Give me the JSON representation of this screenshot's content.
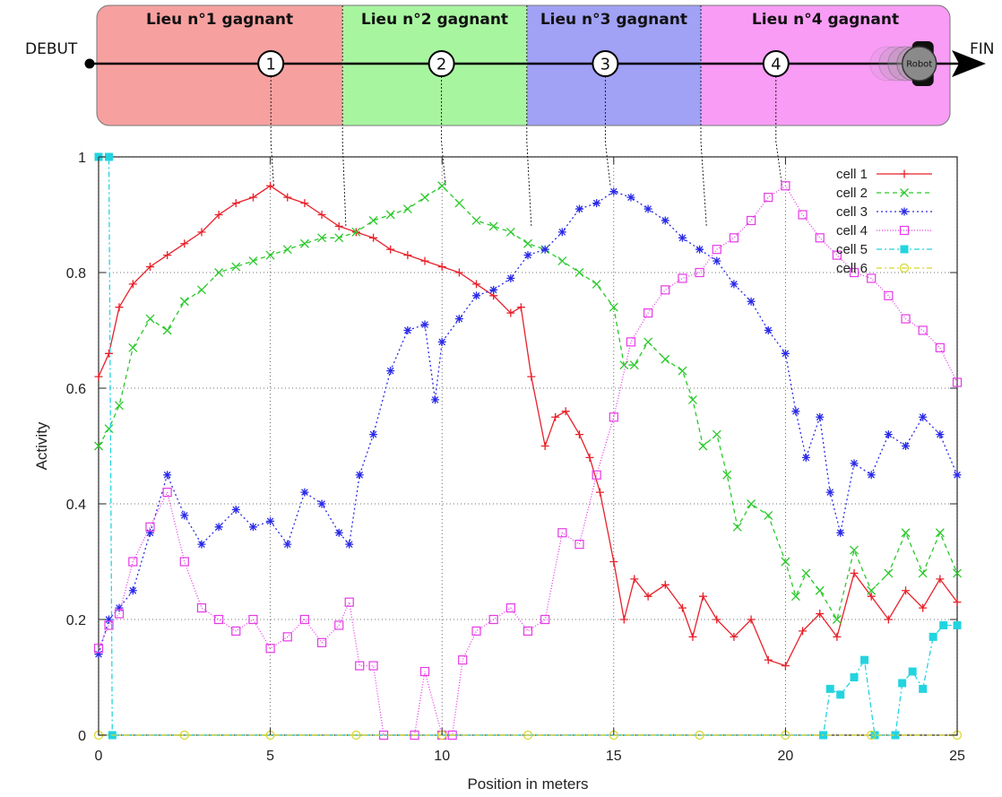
{
  "banner": {
    "start_label": "DEBUT",
    "end_label": "FIN",
    "robot_label": "Robot",
    "zones": [
      {
        "label": "Lieu n°1 gagnant",
        "from": 0,
        "to": 7.2,
        "color": "#f7a0a0"
      },
      {
        "label": "Lieu n°2 gagnant",
        "from": 7.2,
        "to": 12.6,
        "color": "#a8f5a0"
      },
      {
        "label": "Lieu n°3 gagnant",
        "from": 12.6,
        "to": 17.7,
        "color": "#a1a1f5"
      },
      {
        "label": "Lieu n°4 gagnant",
        "from": 17.7,
        "to": 25,
        "color": "#f89cf5"
      }
    ],
    "places": [
      {
        "label": "1",
        "x": 5.1
      },
      {
        "label": "2",
        "x": 10.1
      },
      {
        "label": "3",
        "x": 14.9
      },
      {
        "label": "4",
        "x": 19.9
      }
    ],
    "robot_position": 24.1
  },
  "chart_data": {
    "type": "line",
    "xlabel": "Position in meters",
    "ylabel": "Activity",
    "xlim": [
      0,
      25
    ],
    "ylim": [
      0,
      1
    ],
    "xticks": [
      0,
      5,
      10,
      15,
      20,
      25
    ],
    "yticks": [
      0,
      0.2,
      0.4,
      0.6,
      0.8,
      1
    ],
    "ytick_labels": [
      "0",
      "0.2",
      "0.4",
      "0.6",
      "0.8",
      "1"
    ],
    "grid": true,
    "legend_position": "top-right",
    "boundaries": [
      7.2,
      12.6,
      17.7
    ],
    "series": [
      {
        "name": "cell 1",
        "color": "#e8202a",
        "marker": "plus",
        "dash": "",
        "points": [
          [
            0,
            0.62
          ],
          [
            0.3,
            0.66
          ],
          [
            0.6,
            0.74
          ],
          [
            1,
            0.78
          ],
          [
            1.5,
            0.81
          ],
          [
            2,
            0.83
          ],
          [
            2.5,
            0.85
          ],
          [
            3,
            0.87
          ],
          [
            3.5,
            0.9
          ],
          [
            4,
            0.92
          ],
          [
            4.5,
            0.93
          ],
          [
            5,
            0.95
          ],
          [
            5.5,
            0.93
          ],
          [
            6,
            0.92
          ],
          [
            6.5,
            0.9
          ],
          [
            7,
            0.88
          ],
          [
            7.5,
            0.87
          ],
          [
            8,
            0.86
          ],
          [
            8.5,
            0.84
          ],
          [
            9,
            0.83
          ],
          [
            9.5,
            0.82
          ],
          [
            10,
            0.81
          ],
          [
            10.5,
            0.8
          ],
          [
            11,
            0.78
          ],
          [
            11.5,
            0.76
          ],
          [
            12,
            0.73
          ],
          [
            12.3,
            0.74
          ],
          [
            12.6,
            0.62
          ],
          [
            13,
            0.5
          ],
          [
            13.3,
            0.55
          ],
          [
            13.6,
            0.56
          ],
          [
            14,
            0.52
          ],
          [
            14.3,
            0.48
          ],
          [
            14.6,
            0.42
          ],
          [
            15,
            0.3
          ],
          [
            15.3,
            0.2
          ],
          [
            15.6,
            0.27
          ],
          [
            16,
            0.24
          ],
          [
            16.5,
            0.26
          ],
          [
            17,
            0.22
          ],
          [
            17.3,
            0.17
          ],
          [
            17.6,
            0.24
          ],
          [
            18,
            0.2
          ],
          [
            18.5,
            0.17
          ],
          [
            19,
            0.2
          ],
          [
            19.5,
            0.13
          ],
          [
            20,
            0.12
          ],
          [
            20.5,
            0.18
          ],
          [
            21,
            0.21
          ],
          [
            21.5,
            0.17
          ],
          [
            22,
            0.28
          ],
          [
            22.5,
            0.24
          ],
          [
            23,
            0.2
          ],
          [
            23.5,
            0.25
          ],
          [
            24,
            0.22
          ],
          [
            24.5,
            0.27
          ],
          [
            25,
            0.23
          ]
        ]
      },
      {
        "name": "cell 2",
        "color": "#2ac92a",
        "marker": "x",
        "dash": "5,4",
        "points": [
          [
            0,
            0.5
          ],
          [
            0.3,
            0.53
          ],
          [
            0.6,
            0.57
          ],
          [
            1,
            0.67
          ],
          [
            1.5,
            0.72
          ],
          [
            2,
            0.7
          ],
          [
            2.5,
            0.75
          ],
          [
            3,
            0.77
          ],
          [
            3.5,
            0.8
          ],
          [
            4,
            0.81
          ],
          [
            4.5,
            0.82
          ],
          [
            5,
            0.83
          ],
          [
            5.5,
            0.84
          ],
          [
            6,
            0.85
          ],
          [
            6.5,
            0.86
          ],
          [
            7,
            0.86
          ],
          [
            7.5,
            0.87
          ],
          [
            8,
            0.89
          ],
          [
            8.5,
            0.9
          ],
          [
            9,
            0.91
          ],
          [
            9.5,
            0.93
          ],
          [
            10,
            0.95
          ],
          [
            10.5,
            0.92
          ],
          [
            11,
            0.89
          ],
          [
            11.5,
            0.88
          ],
          [
            12,
            0.87
          ],
          [
            12.5,
            0.85
          ],
          [
            13,
            0.84
          ],
          [
            13.5,
            0.82
          ],
          [
            14,
            0.8
          ],
          [
            14.5,
            0.78
          ],
          [
            15,
            0.74
          ],
          [
            15.3,
            0.64
          ],
          [
            15.6,
            0.64
          ],
          [
            16,
            0.68
          ],
          [
            16.5,
            0.65
          ],
          [
            17,
            0.63
          ],
          [
            17.3,
            0.58
          ],
          [
            17.6,
            0.5
          ],
          [
            18,
            0.52
          ],
          [
            18.3,
            0.45
          ],
          [
            18.6,
            0.36
          ],
          [
            19,
            0.4
          ],
          [
            19.5,
            0.38
          ],
          [
            20,
            0.3
          ],
          [
            20.3,
            0.24
          ],
          [
            20.6,
            0.28
          ],
          [
            21,
            0.25
          ],
          [
            21.5,
            0.2
          ],
          [
            22,
            0.32
          ],
          [
            22.5,
            0.25
          ],
          [
            23,
            0.28
          ],
          [
            23.5,
            0.35
          ],
          [
            24,
            0.28
          ],
          [
            24.5,
            0.35
          ],
          [
            25,
            0.28
          ]
        ]
      },
      {
        "name": "cell 3",
        "color": "#2a2ae8",
        "marker": "star",
        "dash": "2,3",
        "points": [
          [
            0,
            0.14
          ],
          [
            0.3,
            0.2
          ],
          [
            0.6,
            0.22
          ],
          [
            1,
            0.25
          ],
          [
            1.5,
            0.35
          ],
          [
            2,
            0.45
          ],
          [
            2.5,
            0.38
          ],
          [
            3,
            0.33
          ],
          [
            3.5,
            0.36
          ],
          [
            4,
            0.39
          ],
          [
            4.5,
            0.36
          ],
          [
            5,
            0.37
          ],
          [
            5.5,
            0.33
          ],
          [
            6,
            0.42
          ],
          [
            6.5,
            0.4
          ],
          [
            7,
            0.35
          ],
          [
            7.3,
            0.33
          ],
          [
            7.6,
            0.45
          ],
          [
            8,
            0.52
          ],
          [
            8.5,
            0.63
          ],
          [
            9,
            0.7
          ],
          [
            9.5,
            0.71
          ],
          [
            9.8,
            0.58
          ],
          [
            10,
            0.68
          ],
          [
            10.5,
            0.72
          ],
          [
            11,
            0.76
          ],
          [
            11.5,
            0.77
          ],
          [
            12,
            0.79
          ],
          [
            12.5,
            0.83
          ],
          [
            13,
            0.84
          ],
          [
            13.5,
            0.87
          ],
          [
            14,
            0.91
          ],
          [
            14.5,
            0.92
          ],
          [
            15,
            0.94
          ],
          [
            15.5,
            0.93
          ],
          [
            16,
            0.91
          ],
          [
            16.5,
            0.89
          ],
          [
            17,
            0.86
          ],
          [
            17.5,
            0.84
          ],
          [
            18,
            0.82
          ],
          [
            18.5,
            0.78
          ],
          [
            19,
            0.75
          ],
          [
            19.5,
            0.7
          ],
          [
            20,
            0.66
          ],
          [
            20.3,
            0.56
          ],
          [
            20.6,
            0.48
          ],
          [
            21,
            0.55
          ],
          [
            21.3,
            0.42
          ],
          [
            21.6,
            0.35
          ],
          [
            22,
            0.47
          ],
          [
            22.5,
            0.45
          ],
          [
            23,
            0.52
          ],
          [
            23.5,
            0.5
          ],
          [
            24,
            0.55
          ],
          [
            24.5,
            0.52
          ],
          [
            25,
            0.45
          ]
        ]
      },
      {
        "name": "cell 4",
        "color": "#e63ae6",
        "marker": "square",
        "dash": "1,2",
        "points": [
          [
            0,
            0.15
          ],
          [
            0.3,
            0.19
          ],
          [
            0.6,
            0.21
          ],
          [
            1,
            0.3
          ],
          [
            1.5,
            0.36
          ],
          [
            2,
            0.42
          ],
          [
            2.5,
            0.3
          ],
          [
            3,
            0.22
          ],
          [
            3.5,
            0.2
          ],
          [
            4,
            0.18
          ],
          [
            4.5,
            0.2
          ],
          [
            5,
            0.15
          ],
          [
            5.5,
            0.17
          ],
          [
            6,
            0.2
          ],
          [
            6.5,
            0.16
          ],
          [
            7,
            0.19
          ],
          [
            7.3,
            0.23
          ],
          [
            7.6,
            0.12
          ],
          [
            8,
            0.12
          ],
          [
            8.3,
            0.0
          ],
          [
            9.2,
            0.0
          ],
          [
            9.5,
            0.11
          ],
          [
            10,
            0.0
          ],
          [
            10.3,
            0.0
          ],
          [
            10.6,
            0.13
          ],
          [
            11,
            0.18
          ],
          [
            11.5,
            0.2
          ],
          [
            12,
            0.22
          ],
          [
            12.5,
            0.18
          ],
          [
            13,
            0.2
          ],
          [
            13.5,
            0.35
          ],
          [
            14,
            0.33
          ],
          [
            14.5,
            0.45
          ],
          [
            15,
            0.55
          ],
          [
            15.5,
            0.68
          ],
          [
            16,
            0.73
          ],
          [
            16.5,
            0.77
          ],
          [
            17,
            0.79
          ],
          [
            17.5,
            0.8
          ],
          [
            18,
            0.84
          ],
          [
            18.5,
            0.86
          ],
          [
            19,
            0.89
          ],
          [
            19.5,
            0.93
          ],
          [
            20,
            0.95
          ],
          [
            20.5,
            0.9
          ],
          [
            21,
            0.86
          ],
          [
            21.5,
            0.83
          ],
          [
            22,
            0.8
          ],
          [
            22.5,
            0.79
          ],
          [
            23,
            0.76
          ],
          [
            23.5,
            0.72
          ],
          [
            24,
            0.7
          ],
          [
            24.5,
            0.67
          ],
          [
            25,
            0.61
          ]
        ]
      },
      {
        "name": "cell 5",
        "color": "#22d4e0",
        "marker": "filled-square",
        "dash": "6,3,2,3",
        "points": [
          [
            0,
            1.0
          ],
          [
            0.3,
            1.0
          ],
          [
            0.4,
            0.0
          ],
          [
            21.1,
            0.0
          ],
          [
            21.3,
            0.08
          ],
          [
            21.6,
            0.07
          ],
          [
            22,
            0.1
          ],
          [
            22.3,
            0.13
          ],
          [
            22.6,
            0.0
          ],
          [
            23.2,
            0.0
          ],
          [
            23.4,
            0.09
          ],
          [
            23.7,
            0.11
          ],
          [
            24,
            0.08
          ],
          [
            24.3,
            0.17
          ],
          [
            24.6,
            0.19
          ],
          [
            25,
            0.19
          ]
        ]
      },
      {
        "name": "cell 6",
        "color": "#d6d62a",
        "marker": "circle",
        "dash": "6,3,2,3",
        "points": [
          [
            0,
            0.0
          ],
          [
            2.5,
            0.0
          ],
          [
            5,
            0.0
          ],
          [
            7.5,
            0.0
          ],
          [
            10,
            0.0
          ],
          [
            12.5,
            0.0
          ],
          [
            15,
            0.0
          ],
          [
            17.5,
            0.0
          ],
          [
            20,
            0.0
          ],
          [
            22.5,
            0.0
          ],
          [
            25,
            0.0
          ]
        ]
      }
    ]
  }
}
